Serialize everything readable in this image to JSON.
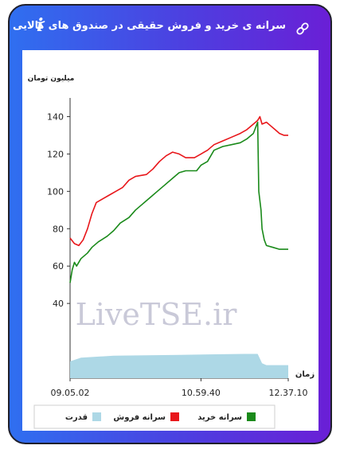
{
  "header": {
    "title": "سرانه ی خرید و فروش حقیقی در صندوق های کالایی",
    "info_icon": "i",
    "link_icon": "link-icon"
  },
  "watermark": "LiveTSE.ir",
  "chart_data": {
    "type": "line",
    "ylabel": "میلیون تومان",
    "xlabel": "زمان",
    "yticks": [
      40,
      60,
      80,
      100,
      120,
      140
    ],
    "xticks": [
      "09.05.02",
      "10.59.40",
      "12.37.10"
    ],
    "ylim": [
      0,
      150
    ],
    "legend_position": "bottom",
    "colors": {
      "buy": "#1a8a1a",
      "sell": "#e8161a",
      "power": "#add8e6"
    },
    "series": [
      {
        "name": "سرانه خرید",
        "color": "#1a8a1a",
        "points": [
          [
            0,
            51
          ],
          [
            0.01,
            58
          ],
          [
            0.02,
            62
          ],
          [
            0.03,
            60
          ],
          [
            0.05,
            64
          ],
          [
            0.08,
            67
          ],
          [
            0.1,
            70
          ],
          [
            0.13,
            73
          ],
          [
            0.17,
            76
          ],
          [
            0.2,
            79
          ],
          [
            0.23,
            83
          ],
          [
            0.27,
            86
          ],
          [
            0.3,
            90
          ],
          [
            0.33,
            93
          ],
          [
            0.37,
            97
          ],
          [
            0.4,
            100
          ],
          [
            0.43,
            103
          ],
          [
            0.47,
            107
          ],
          [
            0.5,
            110
          ],
          [
            0.53,
            111
          ],
          [
            0.56,
            111
          ],
          [
            0.58,
            111
          ],
          [
            0.6,
            114
          ],
          [
            0.63,
            116
          ],
          [
            0.66,
            122
          ],
          [
            0.7,
            124
          ],
          [
            0.74,
            125
          ],
          [
            0.78,
            126
          ],
          [
            0.81,
            128
          ],
          [
            0.84,
            131
          ],
          [
            0.85,
            134
          ],
          [
            0.86,
            137
          ],
          [
            0.865,
            100
          ],
          [
            0.875,
            90
          ],
          [
            0.88,
            80
          ],
          [
            0.89,
            74
          ],
          [
            0.9,
            71
          ],
          [
            0.93,
            70
          ],
          [
            0.96,
            69
          ],
          [
            1.0,
            69
          ]
        ]
      },
      {
        "name": "سرانه فروش",
        "color": "#e8161a",
        "points": [
          [
            0,
            75
          ],
          [
            0.02,
            72
          ],
          [
            0.04,
            71
          ],
          [
            0.06,
            74
          ],
          [
            0.08,
            80
          ],
          [
            0.1,
            88
          ],
          [
            0.12,
            94
          ],
          [
            0.15,
            96
          ],
          [
            0.18,
            98
          ],
          [
            0.21,
            100
          ],
          [
            0.24,
            102
          ],
          [
            0.27,
            106
          ],
          [
            0.3,
            108
          ],
          [
            0.35,
            109
          ],
          [
            0.38,
            112
          ],
          [
            0.41,
            116
          ],
          [
            0.44,
            119
          ],
          [
            0.47,
            121
          ],
          [
            0.5,
            120
          ],
          [
            0.53,
            118
          ],
          [
            0.57,
            118
          ],
          [
            0.6,
            120
          ],
          [
            0.63,
            122
          ],
          [
            0.66,
            125
          ],
          [
            0.7,
            127
          ],
          [
            0.74,
            129
          ],
          [
            0.78,
            131
          ],
          [
            0.81,
            133
          ],
          [
            0.84,
            136
          ],
          [
            0.86,
            138
          ],
          [
            0.87,
            140
          ],
          [
            0.88,
            136
          ],
          [
            0.9,
            137
          ],
          [
            0.92,
            135
          ],
          [
            0.94,
            133
          ],
          [
            0.96,
            131
          ],
          [
            0.98,
            130
          ],
          [
            1.0,
            130
          ]
        ]
      },
      {
        "name": "قدرت",
        "color": "#add8e6",
        "points": [
          [
            0,
            9
          ],
          [
            0.05,
            11
          ],
          [
            0.2,
            12
          ],
          [
            0.5,
            12.5
          ],
          [
            0.8,
            13
          ],
          [
            0.86,
            13
          ],
          [
            0.88,
            8
          ],
          [
            0.9,
            7
          ],
          [
            1.0,
            7
          ]
        ]
      }
    ]
  }
}
